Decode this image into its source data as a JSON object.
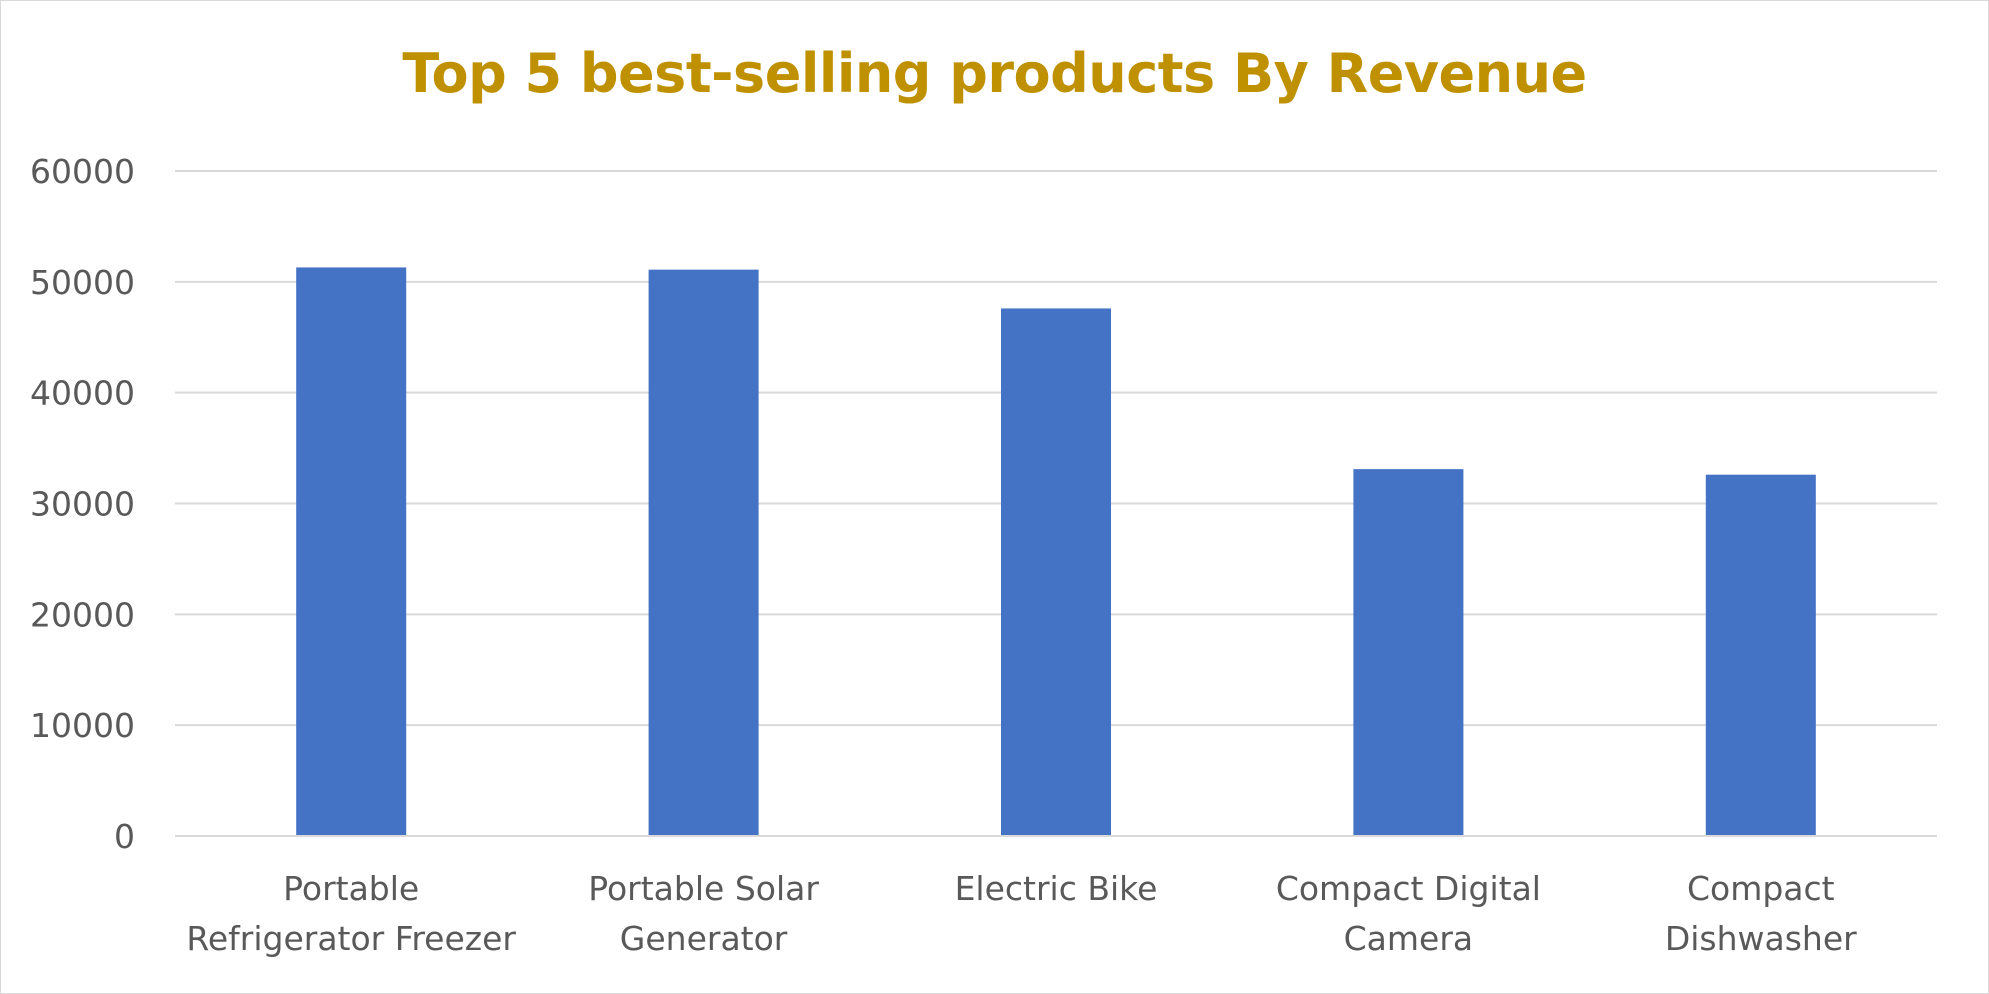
{
  "chart_data": {
    "type": "bar",
    "title": "Top 5 best-selling products By Revenue",
    "xlabel": "",
    "ylabel": "",
    "ylim": [
      0,
      60000
    ],
    "yticks": [
      "0",
      "10000",
      "20000",
      "30000",
      "40000",
      "50000",
      "60000"
    ],
    "grid": true,
    "legend": "none",
    "categories": [
      [
        "Portable",
        "Refrigerator Freezer"
      ],
      [
        "Portable Solar",
        "Generator"
      ],
      [
        "Electric Bike"
      ],
      [
        "Compact Digital",
        "Camera"
      ],
      [
        "Compact",
        "Dishwasher"
      ]
    ],
    "values": [
      51300,
      51100,
      47600,
      33100,
      32600
    ],
    "bar_color": "#4472c4",
    "title_color": "#bf9000"
  }
}
